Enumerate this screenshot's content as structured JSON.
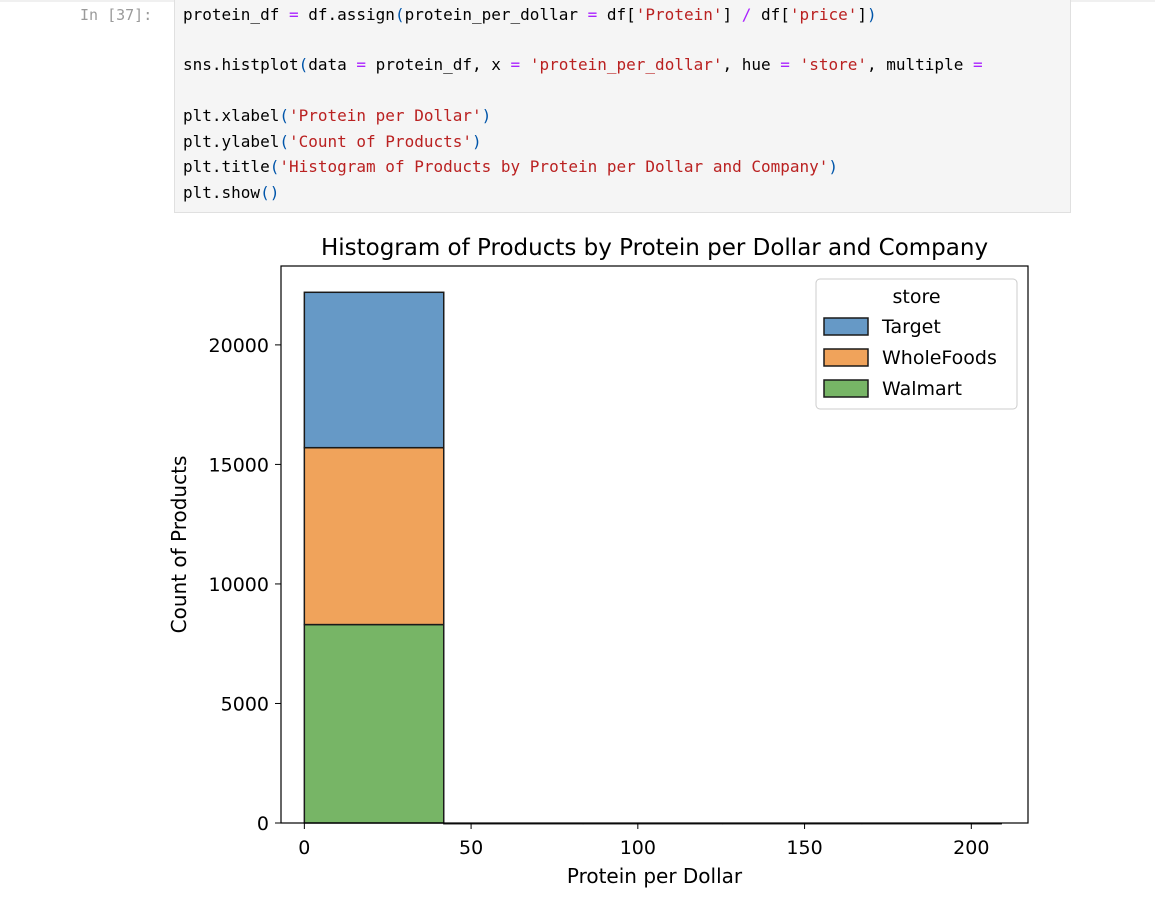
{
  "cell": {
    "prompt": "In [37]:",
    "lines": [
      "protein_df = df.assign(protein_per_dollar = df['Protein'] / df['price'])",
      "",
      "sns.histplot(data = protein_df, x = 'protein_per_dollar', hue = 'store', multiple =",
      "",
      "plt.xlabel('Protein per Dollar')",
      "plt.ylabel('Count of Products')",
      "plt.title('Histogram of Products by Protein per Dollar and Company')",
      "plt.show()"
    ]
  },
  "chart_data": {
    "type": "bar",
    "title": "Histogram of Products by Protein per Dollar and Company",
    "xlabel": "Protein per Dollar",
    "ylabel": "Count of Products",
    "xlim": [
      -7,
      217
    ],
    "ylim": [
      0,
      23300
    ],
    "x_ticks": [
      0,
      50,
      100,
      150,
      200
    ],
    "y_ticks": [
      0,
      5000,
      10000,
      15000,
      20000
    ],
    "grid": false,
    "stacked": true,
    "bins": [
      [
        0,
        41.8
      ],
      [
        41.8,
        83.6
      ],
      [
        83.6,
        125.4
      ],
      [
        125.4,
        167.2
      ],
      [
        167.2,
        209
      ]
    ],
    "legend": {
      "title": "store",
      "placement": "top-right"
    },
    "series": [
      {
        "name": "Walmart",
        "color": "#77b566",
        "values": [
          8300,
          0,
          0,
          0,
          0
        ]
      },
      {
        "name": "WholeFoods",
        "color": "#f0a35b",
        "values": [
          7400,
          0,
          0,
          0,
          0
        ]
      },
      {
        "name": "Target",
        "color": "#6699c6",
        "values": [
          6500,
          0,
          0,
          0,
          0
        ]
      }
    ],
    "legend_order": [
      "Target",
      "WholeFoods",
      "Walmart"
    ]
  }
}
